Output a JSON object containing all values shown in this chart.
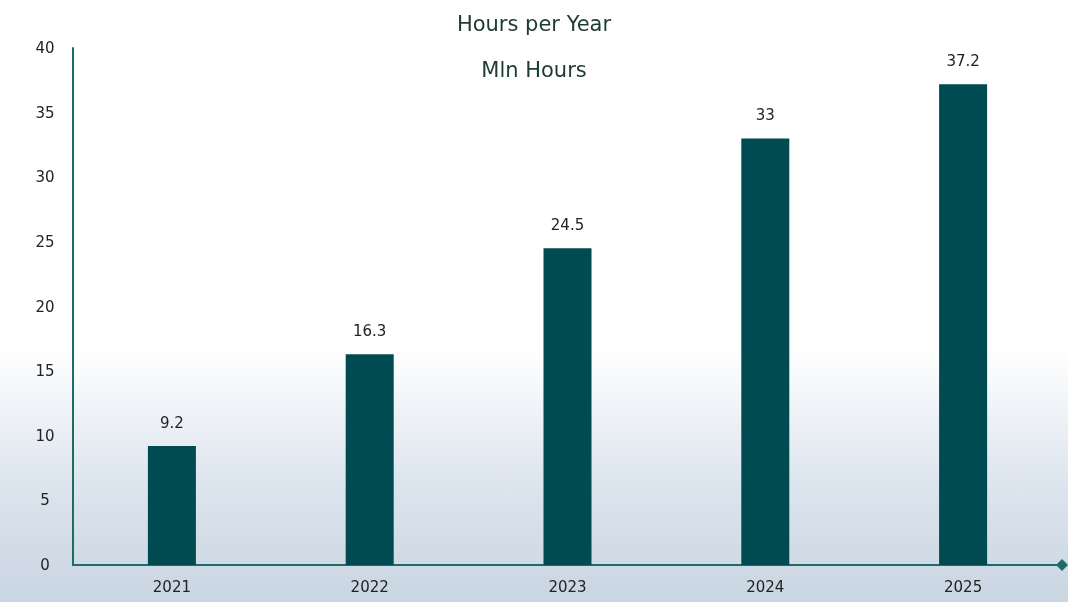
{
  "chart_data": {
    "type": "bar",
    "title": "Hours per Year",
    "subtitle": "Mln Hours",
    "categories": [
      "2021",
      "2022",
      "2023",
      "2024",
      "2025"
    ],
    "values": [
      9.2,
      16.3,
      24.5,
      33,
      37.2
    ],
    "color": "#004a52",
    "ylim": [
      0,
      40
    ],
    "yticks": [
      0,
      5,
      10,
      15,
      20,
      25,
      30,
      35,
      40
    ],
    "grid": false,
    "data_labels": true
  }
}
